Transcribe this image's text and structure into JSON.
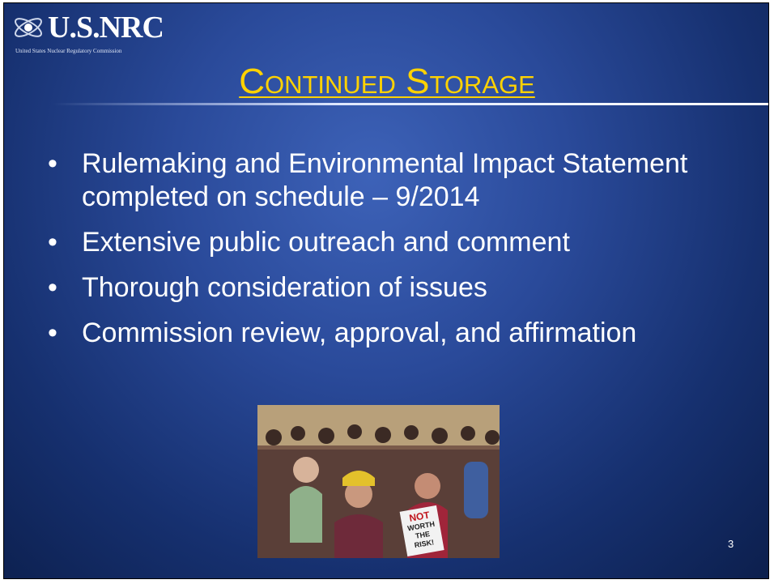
{
  "header": {
    "logo": "U.S.NRC",
    "logo_subtitle": "United States Nuclear Regulatory Commission",
    "title": "Continued Storage"
  },
  "bullets": [
    "Rulemaking and Environmental Impact Statement completed on schedule – 9/2014",
    "Extensive public outreach and comment",
    "Thorough consideration of issues",
    "Commission review, approval, and affirmation"
  ],
  "photo": {
    "sign": [
      "NOT",
      "WORTH",
      "THE",
      "RISK!"
    ]
  },
  "footer": {
    "page_number": "3"
  }
}
